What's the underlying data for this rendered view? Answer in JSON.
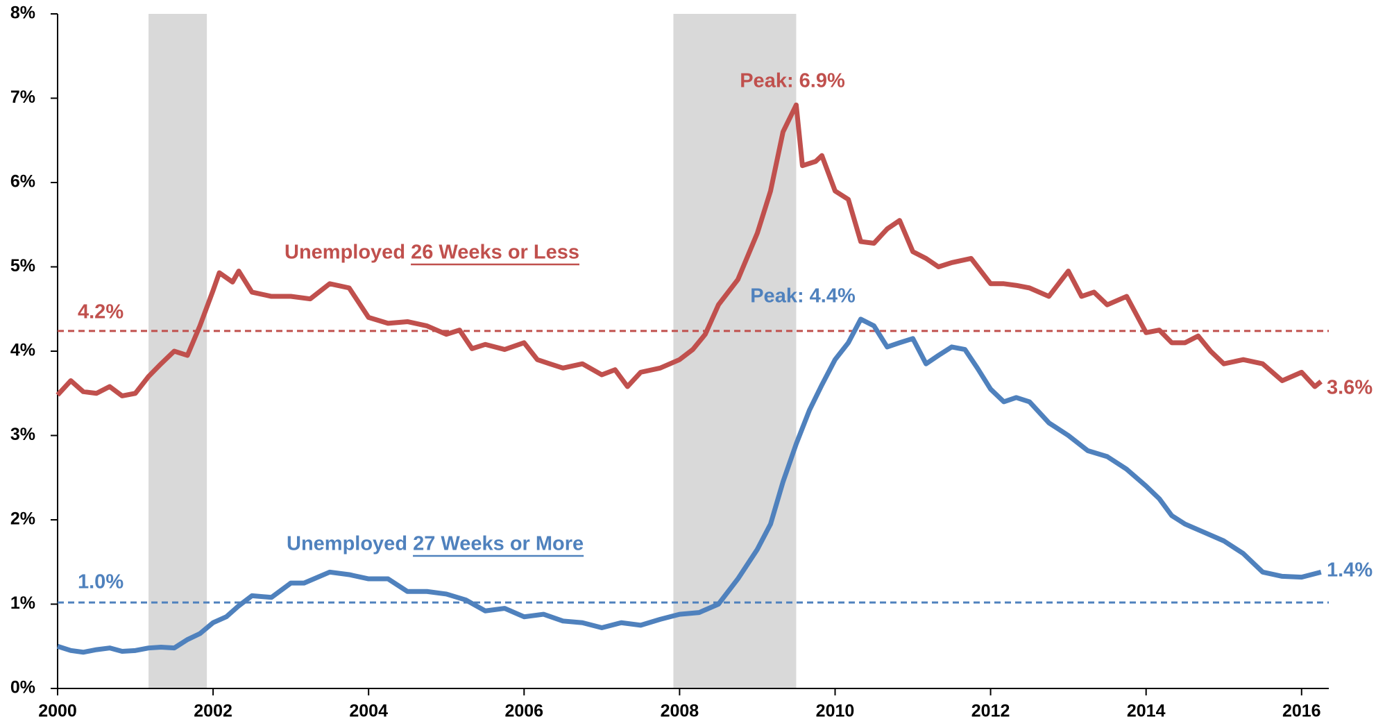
{
  "chart_data": {
    "type": "line",
    "xlim": [
      2000,
      2016.35
    ],
    "xticks": [
      2000,
      2002,
      2004,
      2006,
      2008,
      2010,
      2012,
      2014,
      2016
    ],
    "ylim": [
      0,
      8
    ],
    "yticks": [
      {
        "value": 0,
        "label": "0%"
      },
      {
        "value": 1,
        "label": "1%"
      },
      {
        "value": 2,
        "label": "2%"
      },
      {
        "value": 3,
        "label": "3%"
      },
      {
        "value": 4,
        "label": "4%"
      },
      {
        "value": 5,
        "label": "5%"
      },
      {
        "value": 6,
        "label": "6%"
      },
      {
        "value": 7,
        "label": "7%"
      },
      {
        "value": 8,
        "label": "8%"
      }
    ],
    "recessions": [
      [
        2001.17,
        2001.92
      ],
      [
        2007.92,
        2009.5
      ]
    ],
    "series": [
      {
        "name": "Unemployed 26 Weeks or Less",
        "color": "#c0504d",
        "x": [
          2000.0,
          2000.17,
          2000.33,
          2000.5,
          2000.67,
          2000.83,
          2001.0,
          2001.17,
          2001.33,
          2001.5,
          2001.67,
          2001.83,
          2002.0,
          2002.08,
          2002.25,
          2002.33,
          2002.5,
          2002.75,
          2003.0,
          2003.25,
          2003.5,
          2003.75,
          2004.0,
          2004.25,
          2004.5,
          2004.75,
          2005.0,
          2005.17,
          2005.33,
          2005.5,
          2005.75,
          2006.0,
          2006.17,
          2006.33,
          2006.5,
          2006.75,
          2007.0,
          2007.17,
          2007.33,
          2007.5,
          2007.75,
          2008.0,
          2008.17,
          2008.33,
          2008.5,
          2008.75,
          2009.0,
          2009.17,
          2009.33,
          2009.5,
          2009.58,
          2009.75,
          2009.83,
          2010.0,
          2010.17,
          2010.33,
          2010.5,
          2010.67,
          2010.83,
          2011.0,
          2011.17,
          2011.33,
          2011.5,
          2011.75,
          2012.0,
          2012.17,
          2012.33,
          2012.5,
          2012.75,
          2013.0,
          2013.17,
          2013.33,
          2013.5,
          2013.75,
          2014.0,
          2014.17,
          2014.33,
          2014.5,
          2014.67,
          2014.83,
          2015.0,
          2015.25,
          2015.5,
          2015.75,
          2016.0,
          2016.17,
          2016.25
        ],
        "values": [
          3.48,
          3.65,
          3.52,
          3.5,
          3.58,
          3.47,
          3.5,
          3.7,
          3.85,
          4.0,
          3.95,
          4.3,
          4.72,
          4.93,
          4.82,
          4.95,
          4.7,
          4.65,
          4.65,
          4.62,
          4.8,
          4.75,
          4.4,
          4.33,
          4.35,
          4.3,
          4.2,
          4.25,
          4.03,
          4.08,
          4.02,
          4.1,
          3.9,
          3.85,
          3.8,
          3.85,
          3.72,
          3.78,
          3.58,
          3.75,
          3.8,
          3.9,
          4.02,
          4.2,
          4.55,
          4.85,
          5.4,
          5.9,
          6.6,
          6.92,
          6.2,
          6.25,
          6.32,
          5.9,
          5.8,
          5.3,
          5.28,
          5.45,
          5.55,
          5.18,
          5.1,
          5.0,
          5.05,
          5.1,
          4.8,
          4.8,
          4.78,
          4.75,
          4.65,
          4.95,
          4.65,
          4.7,
          4.55,
          4.65,
          4.22,
          4.25,
          4.1,
          4.1,
          4.18,
          4.0,
          3.85,
          3.9,
          3.85,
          3.65,
          3.75,
          3.58,
          3.64
        ],
        "average": {
          "value": 4.24,
          "label": "4.2%"
        },
        "peak_label": "Peak: 6.9%",
        "end_label": "3.6%"
      },
      {
        "name": "Unemployed 27 Weeks or More",
        "color": "#4f81bd",
        "x": [
          2000.0,
          2000.17,
          2000.33,
          2000.5,
          2000.67,
          2000.83,
          2001.0,
          2001.17,
          2001.33,
          2001.5,
          2001.67,
          2001.83,
          2002.0,
          2002.17,
          2002.33,
          2002.5,
          2002.75,
          2003.0,
          2003.17,
          2003.5,
          2003.75,
          2004.0,
          2004.25,
          2004.5,
          2004.75,
          2005.0,
          2005.25,
          2005.5,
          2005.75,
          2006.0,
          2006.25,
          2006.5,
          2006.75,
          2007.0,
          2007.25,
          2007.5,
          2007.75,
          2008.0,
          2008.25,
          2008.5,
          2008.75,
          2009.0,
          2009.17,
          2009.33,
          2009.5,
          2009.67,
          2009.83,
          2010.0,
          2010.17,
          2010.33,
          2010.5,
          2010.67,
          2010.83,
          2011.0,
          2011.17,
          2011.33,
          2011.5,
          2011.67,
          2011.83,
          2012.0,
          2012.17,
          2012.33,
          2012.5,
          2012.75,
          2013.0,
          2013.25,
          2013.5,
          2013.75,
          2014.0,
          2014.17,
          2014.33,
          2014.5,
          2014.75,
          2015.0,
          2015.25,
          2015.5,
          2015.75,
          2016.0,
          2016.25
        ],
        "values": [
          0.5,
          0.45,
          0.43,
          0.46,
          0.48,
          0.44,
          0.45,
          0.48,
          0.49,
          0.48,
          0.58,
          0.65,
          0.78,
          0.85,
          0.98,
          1.1,
          1.08,
          1.25,
          1.25,
          1.38,
          1.35,
          1.3,
          1.3,
          1.15,
          1.15,
          1.12,
          1.05,
          0.92,
          0.95,
          0.85,
          0.88,
          0.8,
          0.78,
          0.72,
          0.78,
          0.75,
          0.82,
          0.88,
          0.9,
          1.0,
          1.3,
          1.65,
          1.95,
          2.45,
          2.9,
          3.3,
          3.6,
          3.9,
          4.1,
          4.38,
          4.3,
          4.05,
          4.1,
          4.15,
          3.85,
          3.95,
          4.05,
          4.02,
          3.8,
          3.55,
          3.4,
          3.45,
          3.4,
          3.15,
          3.0,
          2.82,
          2.75,
          2.6,
          2.4,
          2.25,
          2.05,
          1.95,
          1.85,
          1.75,
          1.6,
          1.38,
          1.33,
          1.32,
          1.38
        ],
        "average": {
          "value": 1.02,
          "label": "1.0%"
        },
        "peak_label": "Peak: 4.4%",
        "end_label": "1.4%"
      }
    ]
  }
}
